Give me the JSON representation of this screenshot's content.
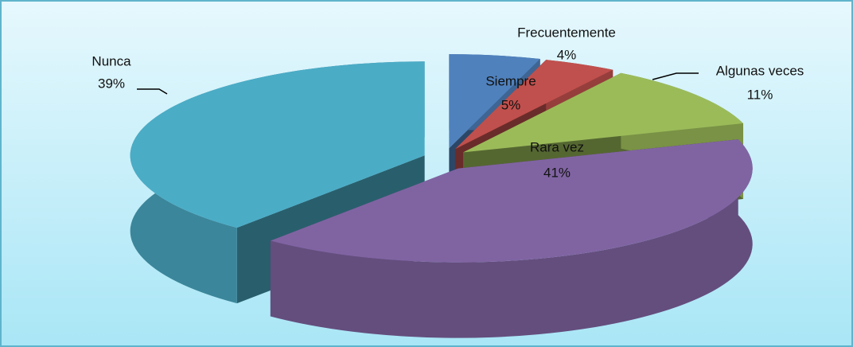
{
  "chart_data": {
    "type": "pie",
    "categories": [
      "Siempre",
      "Frecuentemente",
      "Algunas veces",
      "Rara vez",
      "Nunca"
    ],
    "values": [
      5,
      4,
      11,
      41,
      39
    ],
    "value_labels": [
      "5%",
      "4%",
      "11%",
      "41%",
      "39%"
    ],
    "colors": [
      "#4f81bd",
      "#c0504d",
      "#9bbb59",
      "#8064a2",
      "#4bacc6"
    ]
  }
}
